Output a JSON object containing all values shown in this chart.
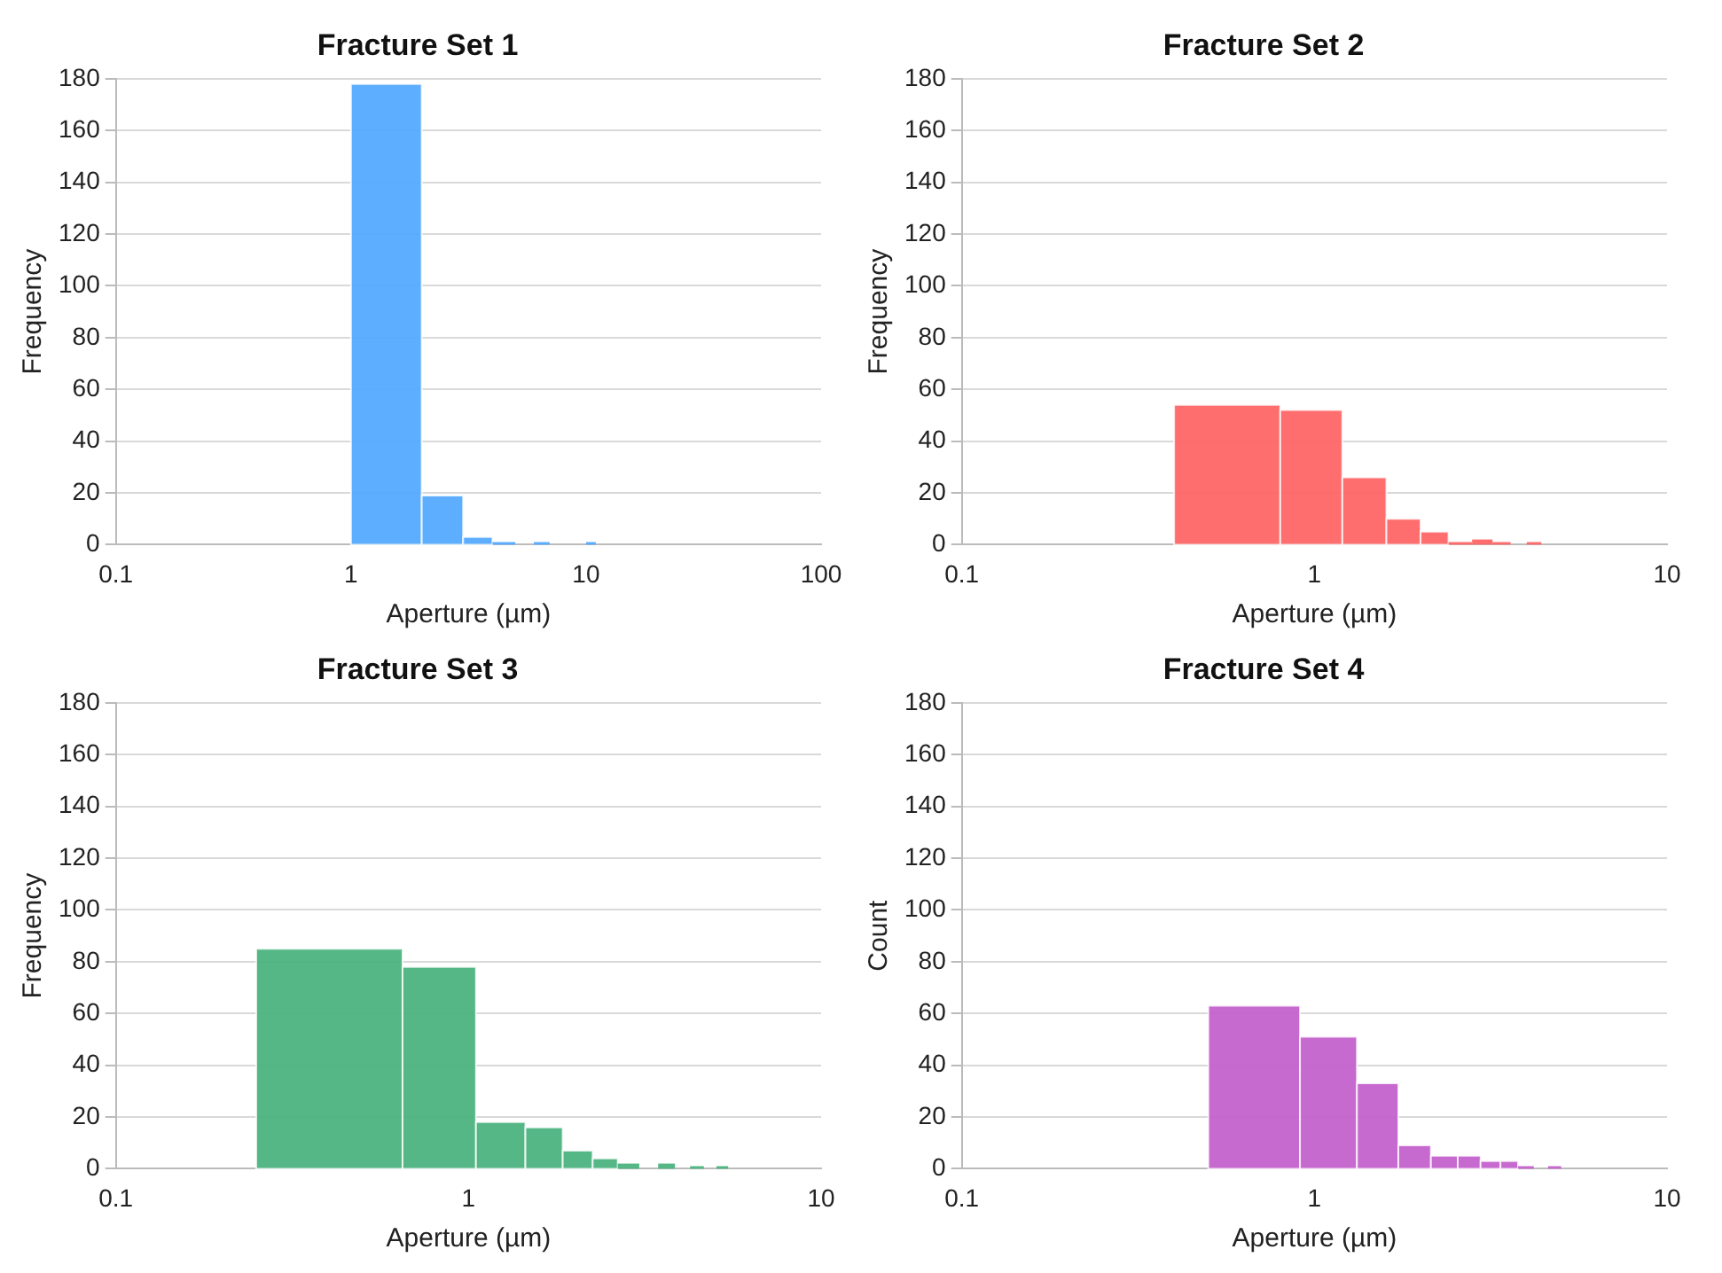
{
  "chart_data": [
    {
      "type": "histogram",
      "title": "Fracture Set 1",
      "xlabel": "Aperture (µm)",
      "ylabel": "Frequency",
      "color": "#55aaff",
      "log": "x",
      "grid": "y",
      "xlim": [
        0.1,
        100
      ],
      "xticks": [
        0.1,
        1,
        10,
        100
      ],
      "ylim": [
        0,
        180
      ],
      "yticks": [
        0,
        20,
        40,
        60,
        80,
        100,
        120,
        140,
        160,
        180
      ],
      "bins": [
        1,
        2,
        3,
        4,
        5,
        6,
        7,
        10,
        11
      ],
      "values": [
        178,
        19,
        3,
        1,
        0,
        1,
        0,
        1
      ]
    },
    {
      "type": "histogram",
      "title": "Fracture Set 2",
      "xlabel": "Aperture (µm)",
      "ylabel": "Frequency",
      "color": "#ff6666",
      "log": "x",
      "grid": "y",
      "xlim": [
        0.1,
        10
      ],
      "xticks": [
        0.1,
        1,
        10
      ],
      "ylim": [
        0,
        180
      ],
      "yticks": [
        0,
        20,
        40,
        60,
        80,
        100,
        120,
        140,
        160,
        180
      ],
      "bins": [
        0.4,
        0.8,
        1.2,
        1.6,
        2.0,
        2.4,
        2.8,
        3.2,
        3.6,
        4.0,
        4.4
      ],
      "values": [
        54,
        52,
        26,
        10,
        5,
        1,
        2,
        1,
        0,
        1
      ]
    },
    {
      "type": "histogram",
      "title": "Fracture Set 3",
      "xlabel": "Aperture (µm)",
      "ylabel": "Frequency",
      "color": "#4db380",
      "log": "x",
      "grid": "y",
      "xlim": [
        0.1,
        10
      ],
      "xticks": [
        0.1,
        1,
        10
      ],
      "ylim": [
        0,
        180
      ],
      "yticks": [
        0,
        20,
        40,
        60,
        80,
        100,
        120,
        140,
        160,
        180
      ],
      "bins": [
        0.25,
        0.65,
        1.05,
        1.45,
        1.85,
        2.25,
        2.65,
        3.05,
        3.45,
        3.85,
        4.25,
        4.65,
        5.05,
        5.45
      ],
      "values": [
        85,
        78,
        18,
        16,
        7,
        4,
        2,
        0,
        2,
        0,
        1,
        0,
        1
      ]
    },
    {
      "type": "histogram",
      "title": "Fracture Set 4",
      "xlabel": "Aperture (µm)",
      "ylabel": "Count",
      "color": "#c462cc",
      "log": "x",
      "grid": "y",
      "xlim": [
        0.1,
        10
      ],
      "xticks": [
        0.1,
        1,
        10
      ],
      "ylim": [
        0,
        180
      ],
      "yticks": [
        0,
        20,
        40,
        60,
        80,
        100,
        120,
        140,
        160,
        180
      ],
      "bins": [
        0.5,
        0.91,
        1.32,
        1.73,
        2.14,
        2.55,
        2.96,
        3.37,
        3.78,
        4.19,
        4.6,
        5.01
      ],
      "values": [
        63,
        51,
        33,
        9,
        5,
        5,
        3,
        3,
        1,
        0,
        1
      ]
    }
  ]
}
